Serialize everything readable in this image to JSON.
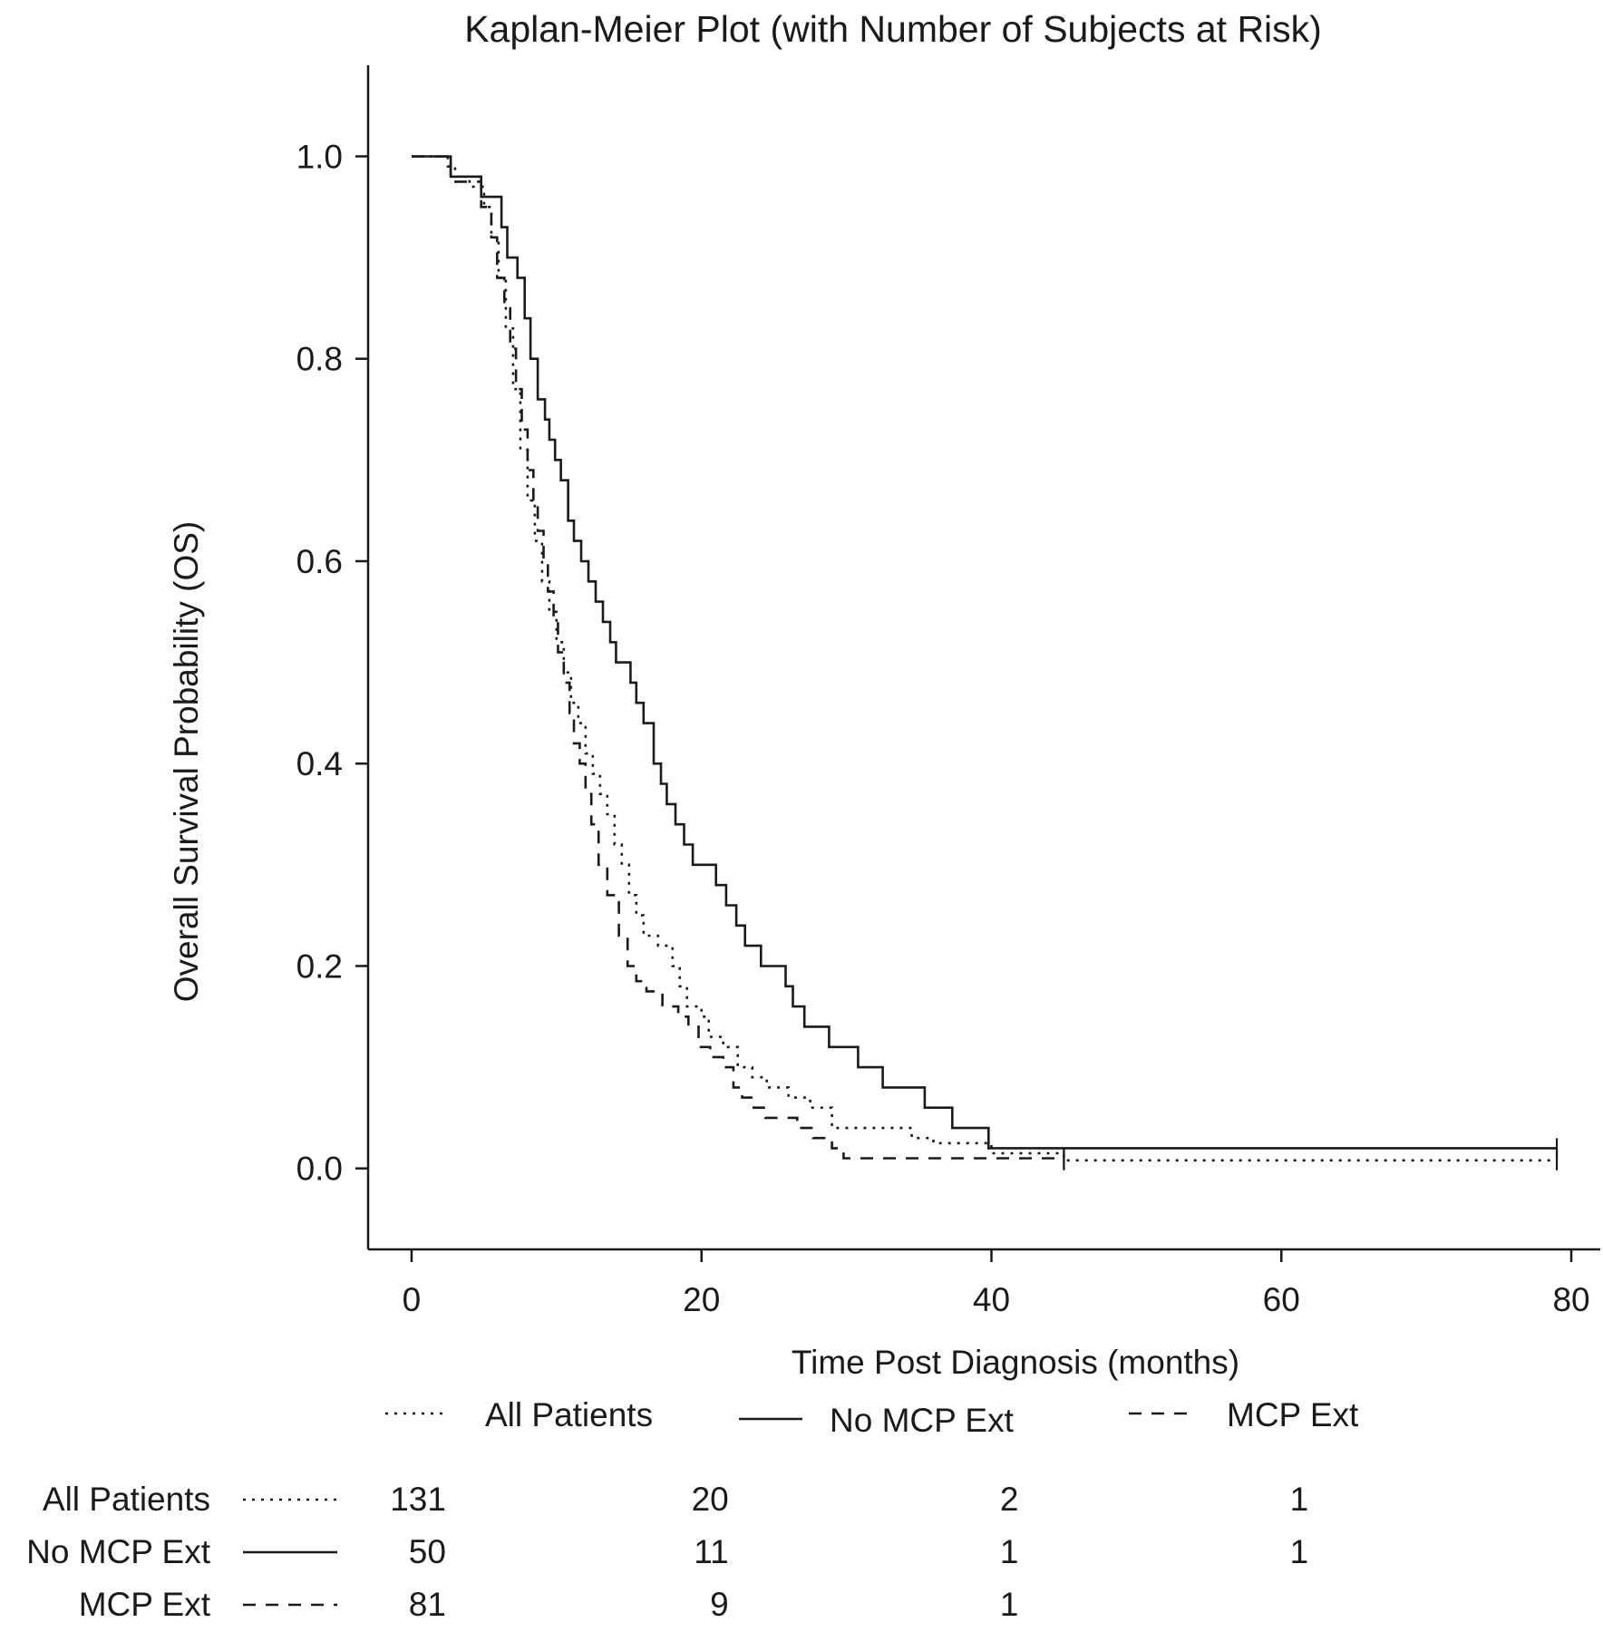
{
  "chart_data": {
    "type": "line",
    "subtype": "kaplan-meier-step",
    "title": "Kaplan-Meier Plot (with Number of Subjects at Risk)",
    "xlabel": "Time Post Diagnosis (months)",
    "ylabel": "Overall Survival Probability (OS)",
    "xlim": [
      -3,
      82
    ],
    "ylim": [
      -0.08,
      1.09
    ],
    "x_ticks": [
      0,
      20,
      40,
      60,
      80
    ],
    "x_tick_labels": [
      "0",
      "20",
      "40",
      "60",
      "80"
    ],
    "y_ticks": [
      0.0,
      0.2,
      0.4,
      0.6,
      0.8,
      1.0
    ],
    "y_tick_labels": [
      "0.0",
      "0.2",
      "0.4",
      "0.6",
      "0.8",
      "1.0"
    ],
    "grid": false,
    "legend_position": "below-plot",
    "series": [
      {
        "name": "All Patients",
        "line_style": "dotted",
        "points": [
          [
            0,
            1.0
          ],
          [
            2.5,
            0.99
          ],
          [
            3.0,
            0.98
          ],
          [
            4.0,
            0.97
          ],
          [
            5.0,
            0.95
          ],
          [
            5.5,
            0.92
          ],
          [
            6.0,
            0.88
          ],
          [
            6.5,
            0.83
          ],
          [
            7.0,
            0.77
          ],
          [
            7.5,
            0.71
          ],
          [
            8.0,
            0.66
          ],
          [
            8.5,
            0.62
          ],
          [
            9.0,
            0.58
          ],
          [
            9.5,
            0.55
          ],
          [
            10.0,
            0.52
          ],
          [
            10.5,
            0.49
          ],
          [
            11.0,
            0.46
          ],
          [
            11.5,
            0.44
          ],
          [
            12.0,
            0.41
          ],
          [
            12.5,
            0.39
          ],
          [
            13.0,
            0.37
          ],
          [
            13.5,
            0.35
          ],
          [
            14.0,
            0.32
          ],
          [
            14.5,
            0.3
          ],
          [
            15.0,
            0.27
          ],
          [
            15.5,
            0.25
          ],
          [
            16.0,
            0.23
          ],
          [
            17.0,
            0.22
          ],
          [
            18.0,
            0.2
          ],
          [
            18.5,
            0.18
          ],
          [
            19.0,
            0.16
          ],
          [
            20.0,
            0.15
          ],
          [
            20.5,
            0.13
          ],
          [
            21.5,
            0.12
          ],
          [
            22.5,
            0.1
          ],
          [
            23.5,
            0.09
          ],
          [
            24.5,
            0.08
          ],
          [
            26.0,
            0.07
          ],
          [
            27.5,
            0.06
          ],
          [
            29.0,
            0.04
          ],
          [
            34.5,
            0.03
          ],
          [
            36.0,
            0.025
          ],
          [
            40.0,
            0.015
          ],
          [
            45.0,
            0.008
          ]
        ],
        "end_time": 79.0,
        "censor_times": [
          45.0,
          79.0
        ]
      },
      {
        "name": "No MCP Ext",
        "line_style": "solid",
        "points": [
          [
            0,
            1.0
          ],
          [
            2.7,
            0.98
          ],
          [
            4.8,
            0.96
          ],
          [
            6.2,
            0.93
          ],
          [
            6.6,
            0.9
          ],
          [
            7.3,
            0.88
          ],
          [
            7.8,
            0.84
          ],
          [
            8.2,
            0.8
          ],
          [
            8.7,
            0.76
          ],
          [
            9.2,
            0.74
          ],
          [
            9.5,
            0.72
          ],
          [
            9.9,
            0.7
          ],
          [
            10.3,
            0.68
          ],
          [
            10.8,
            0.64
          ],
          [
            11.2,
            0.62
          ],
          [
            11.7,
            0.6
          ],
          [
            12.2,
            0.58
          ],
          [
            12.7,
            0.56
          ],
          [
            13.2,
            0.54
          ],
          [
            13.7,
            0.52
          ],
          [
            14.1,
            0.5
          ],
          [
            15.1,
            0.48
          ],
          [
            15.5,
            0.46
          ],
          [
            16.0,
            0.44
          ],
          [
            16.7,
            0.4
          ],
          [
            17.2,
            0.38
          ],
          [
            17.6,
            0.36
          ],
          [
            18.2,
            0.34
          ],
          [
            18.8,
            0.32
          ],
          [
            19.4,
            0.3
          ],
          [
            21.0,
            0.28
          ],
          [
            21.7,
            0.26
          ],
          [
            22.4,
            0.24
          ],
          [
            23.0,
            0.22
          ],
          [
            24.1,
            0.2
          ],
          [
            25.8,
            0.18
          ],
          [
            26.3,
            0.16
          ],
          [
            27.1,
            0.14
          ],
          [
            28.8,
            0.12
          ],
          [
            30.8,
            0.1
          ],
          [
            32.5,
            0.08
          ],
          [
            35.4,
            0.06
          ],
          [
            37.3,
            0.04
          ],
          [
            39.8,
            0.02
          ]
        ],
        "end_time": 79.0,
        "censor_times": [
          79.0
        ]
      },
      {
        "name": "MCP Ext",
        "line_style": "dashed",
        "points": [
          [
            0,
            1.0
          ],
          [
            2.7,
            0.975
          ],
          [
            4.8,
            0.95
          ],
          [
            5.5,
            0.92
          ],
          [
            5.9,
            0.88
          ],
          [
            6.4,
            0.85
          ],
          [
            6.8,
            0.81
          ],
          [
            7.2,
            0.77
          ],
          [
            7.6,
            0.73
          ],
          [
            8.0,
            0.69
          ],
          [
            8.4,
            0.66
          ],
          [
            8.7,
            0.63
          ],
          [
            9.1,
            0.6
          ],
          [
            9.4,
            0.57
          ],
          [
            9.8,
            0.54
          ],
          [
            10.1,
            0.51
          ],
          [
            10.5,
            0.48
          ],
          [
            10.9,
            0.45
          ],
          [
            11.2,
            0.42
          ],
          [
            11.6,
            0.4
          ],
          [
            12.0,
            0.37
          ],
          [
            12.4,
            0.34
          ],
          [
            12.9,
            0.3
          ],
          [
            13.5,
            0.27
          ],
          [
            14.3,
            0.23
          ],
          [
            14.9,
            0.2
          ],
          [
            15.5,
            0.185
          ],
          [
            16.2,
            0.175
          ],
          [
            17.3,
            0.16
          ],
          [
            18.4,
            0.15
          ],
          [
            19.1,
            0.14
          ],
          [
            19.8,
            0.12
          ],
          [
            20.6,
            0.11
          ],
          [
            21.5,
            0.1
          ],
          [
            22.2,
            0.08
          ],
          [
            22.8,
            0.07
          ],
          [
            23.6,
            0.06
          ],
          [
            24.4,
            0.05
          ],
          [
            26.6,
            0.04
          ],
          [
            27.7,
            0.03
          ],
          [
            29.0,
            0.02
          ],
          [
            29.8,
            0.01
          ]
        ],
        "end_time": 45.0,
        "censor_times": [
          45.0
        ]
      }
    ],
    "risk_table": {
      "times": [
        0,
        20,
        40,
        60
      ],
      "rows": [
        {
          "name": "All Patients",
          "line_style": "dotted",
          "counts": [
            "131",
            "20",
            "2",
            "1"
          ]
        },
        {
          "name": "No MCP Ext",
          "line_style": "solid",
          "counts": [
            "50",
            "11",
            "1",
            "1"
          ]
        },
        {
          "name": "MCP Ext",
          "line_style": "dashed",
          "counts": [
            "81",
            "9",
            "1",
            ""
          ]
        }
      ]
    }
  }
}
